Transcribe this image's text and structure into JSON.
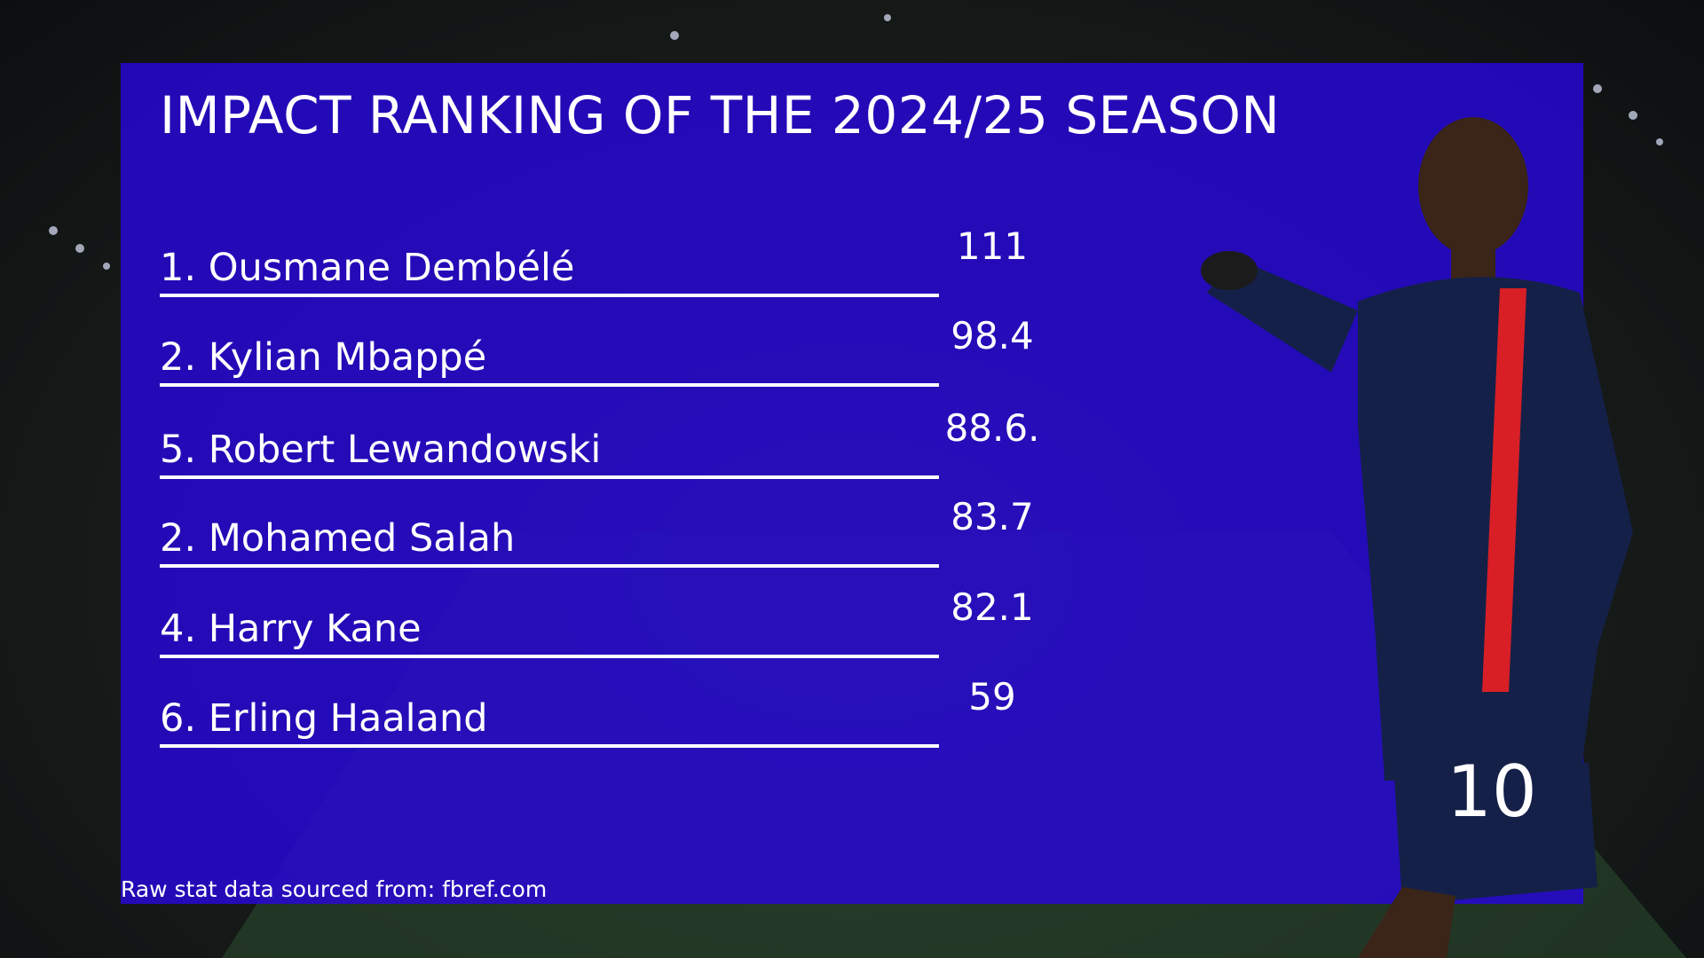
{
  "header": {
    "title": "IMPACT RANKING OF THE 2024/25 SEASON"
  },
  "rankings": [
    {
      "name": "1. Ousmane Dembélé",
      "value": 111
    },
    {
      "name": "2. Kylian Mbappé",
      "value": 98.4
    },
    {
      "name": "5. Robert Lewandowski",
      "value": "88.6."
    },
    {
      "name": "2. Mohamed Salah",
      "value": 83.7
    },
    {
      "name": "4. Harry Kane",
      "value": 82.1
    },
    {
      "name": "6. Erling Haaland",
      "value": 59
    }
  ],
  "footer": {
    "source": "Raw stat data sourced from: fbref.com"
  }
}
